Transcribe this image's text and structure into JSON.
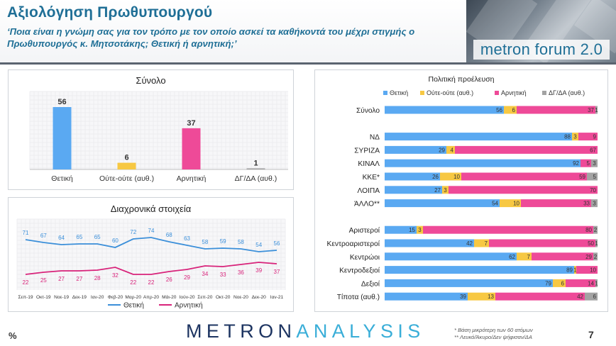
{
  "header": {
    "title": "Αξιολόγηση Πρωθυπουργού",
    "subtitle": "‘Ποια είναι η γνώμη σας για τον τρόπο με τον οποίο ασκεί τα καθήκοντά του μέχρι στιγμής ο Πρωθυπουργός κ. Μητσοτάκης; Θετική ή αρνητική;’",
    "logo_text": "metron forum 2.0"
  },
  "colors": {
    "positive": "#5aa9f2",
    "neutral": "#f7c843",
    "negative": "#ee4a98",
    "dk": "#a3a3a3",
    "line_positive": "#3b8fd9",
    "line_negative": "#d8237a"
  },
  "chart_data": [
    {
      "type": "bar",
      "title": "Σύνολο",
      "categories": [
        "Θετική",
        "Ούτε-ούτε (αυθ.)",
        "Αρνητική",
        "ΔΓ/ΔΑ (αυθ.)"
      ],
      "values": [
        56,
        6,
        37,
        1
      ],
      "ylim": [
        0,
        70
      ]
    },
    {
      "type": "line",
      "title": "Διαχρονικά στοιχεία",
      "x": [
        "Σεπ-19",
        "Οκτ-19",
        "Νοε-19",
        "Δεκ-19",
        "Ιαν-20",
        "Φεβ-20",
        "Μαρ-20",
        "Απρ-20",
        "Μάι-20",
        "Ιούν-20",
        "Σεπ-20",
        "Οκτ-20",
        "Νοε-20",
        "Δεκ-20",
        "Ιαν-21"
      ],
      "series": [
        {
          "name": "Θετική",
          "values": [
            71,
            67,
            64,
            65,
            65,
            60,
            72,
            74,
            68,
            63,
            58,
            59,
            58,
            54,
            56
          ]
        },
        {
          "name": "Αρνητική",
          "values": [
            22,
            25,
            27,
            27,
            28,
            32,
            22,
            22,
            26,
            29,
            34,
            33,
            36,
            39,
            37
          ]
        }
      ],
      "ylim": [
        0,
        100
      ]
    },
    {
      "type": "bar",
      "orientation": "horizontal-stacked",
      "title": "Πολιτική προέλευση",
      "legend": [
        "Θετική",
        "Ούτε-ούτε (αυθ.)",
        "Αρνητική",
        "ΔΓ/ΔΑ (αυθ.)"
      ],
      "legend_position": "top",
      "rows": [
        {
          "label": "Σύνολο",
          "values": [
            56,
            6,
            37,
            1
          ]
        },
        {
          "label": "",
          "values": []
        },
        {
          "label": "ΝΔ",
          "values": [
            88,
            3,
            9,
            0
          ]
        },
        {
          "label": "ΣΥΡΙΖΑ",
          "values": [
            29,
            4,
            67,
            0
          ]
        },
        {
          "label": "ΚΙΝΑΛ",
          "values": [
            92,
            0,
            5,
            3
          ]
        },
        {
          "label": "ΚΚΕ*",
          "values": [
            26,
            10,
            59,
            5
          ]
        },
        {
          "label": "ΛΟΙΠΑ",
          "values": [
            27,
            3,
            70,
            0
          ]
        },
        {
          "label": "ΆΛΛΟ**",
          "values": [
            54,
            10,
            33,
            3
          ]
        },
        {
          "label": "",
          "values": []
        },
        {
          "label": "Αριστεροί",
          "values": [
            15,
            3,
            80,
            2
          ]
        },
        {
          "label": "Κεντροαριστεροί",
          "values": [
            42,
            7,
            50,
            1
          ]
        },
        {
          "label": "Κεντρώοι",
          "values": [
            62,
            7,
            29,
            2
          ]
        },
        {
          "label": "Κεντροδεξιοί",
          "values": [
            89,
            1,
            10,
            0
          ]
        },
        {
          "label": "Δεξιοί",
          "values": [
            79,
            6,
            14,
            1
          ]
        },
        {
          "label": "Τίποτα (αυθ.)",
          "values": [
            39,
            13,
            42,
            6
          ]
        }
      ]
    }
  ],
  "footer": {
    "percent_sign": "%",
    "brand_dark": "METRON",
    "brand_light": "ANALYSIS",
    "footnote_1": "* Βάση μικρότερη των 60 ατόμων",
    "footnote_2": "** Λευκό/Άκυρο/Δεν ψήφισαν/ΔΑ",
    "page_number": "7"
  }
}
